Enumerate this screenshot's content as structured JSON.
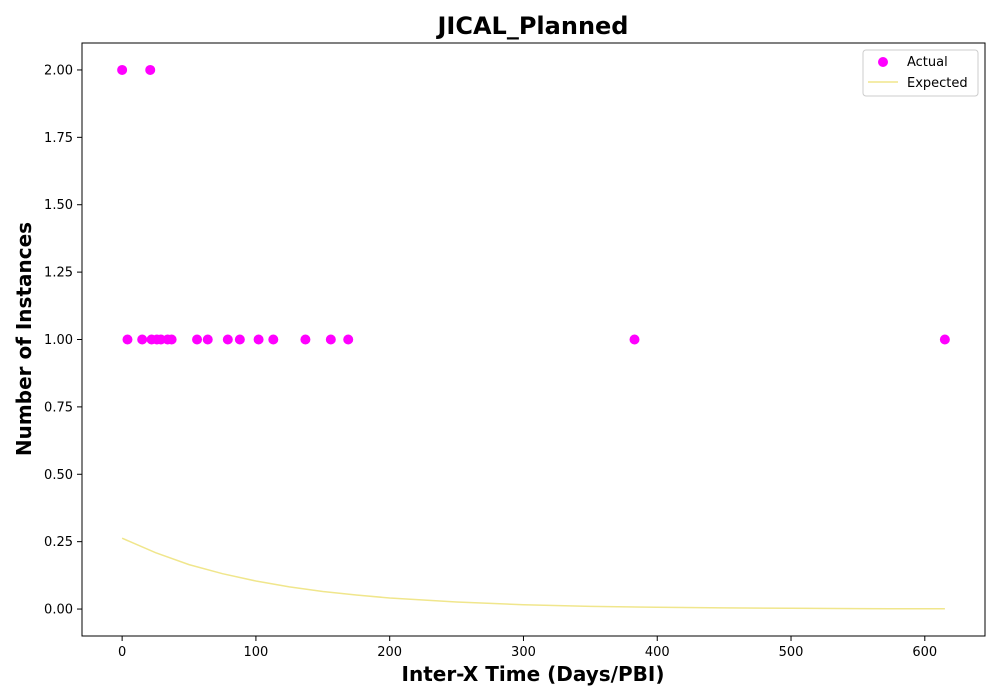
{
  "chart_data": {
    "type": "scatter",
    "title": "JICAL_Planned",
    "xlabel": "Inter-X Time (Days/PBI)",
    "ylabel": "Number of Instances",
    "xlim": [
      -30,
      645
    ],
    "ylim": [
      -0.1,
      2.1
    ],
    "x_ticks": [
      0,
      100,
      200,
      300,
      400,
      500,
      600
    ],
    "y_ticks": [
      0.0,
      0.25,
      0.5,
      0.75,
      1.0,
      1.25,
      1.5,
      1.75,
      2.0
    ],
    "x_tick_labels": [
      "0",
      "100",
      "200",
      "300",
      "400",
      "500",
      "600"
    ],
    "y_tick_labels": [
      "0.00",
      "0.25",
      "0.50",
      "0.75",
      "1.00",
      "1.25",
      "1.50",
      "1.75",
      "2.00"
    ],
    "grid": false,
    "legend_position": "top-right",
    "series": [
      {
        "name": "Actual",
        "kind": "scatter",
        "color": "#ff00ff",
        "points": [
          [
            0,
            2
          ],
          [
            21,
            2
          ],
          [
            4,
            1
          ],
          [
            15,
            1
          ],
          [
            22,
            1
          ],
          [
            26,
            1
          ],
          [
            29,
            1
          ],
          [
            34,
            1
          ],
          [
            37,
            1
          ],
          [
            56,
            1
          ],
          [
            64,
            1
          ],
          [
            79,
            1
          ],
          [
            88,
            1
          ],
          [
            102,
            1
          ],
          [
            113,
            1
          ],
          [
            137,
            1
          ],
          [
            156,
            1
          ],
          [
            169,
            1
          ],
          [
            383,
            1
          ],
          [
            615,
            1
          ]
        ]
      },
      {
        "name": "Expected",
        "kind": "line",
        "color": "#f0e68c",
        "points": [
          [
            0,
            0.263
          ],
          [
            25,
            0.209
          ],
          [
            50,
            0.165
          ],
          [
            75,
            0.131
          ],
          [
            100,
            0.104
          ],
          [
            125,
            0.082
          ],
          [
            150,
            0.065
          ],
          [
            175,
            0.052
          ],
          [
            200,
            0.041
          ],
          [
            250,
            0.026
          ],
          [
            300,
            0.016
          ],
          [
            350,
            0.01
          ],
          [
            400,
            0.0065
          ],
          [
            450,
            0.0041
          ],
          [
            500,
            0.0026
          ],
          [
            550,
            0.0016
          ],
          [
            600,
            0.001
          ],
          [
            615,
            0.0009
          ]
        ]
      }
    ]
  }
}
